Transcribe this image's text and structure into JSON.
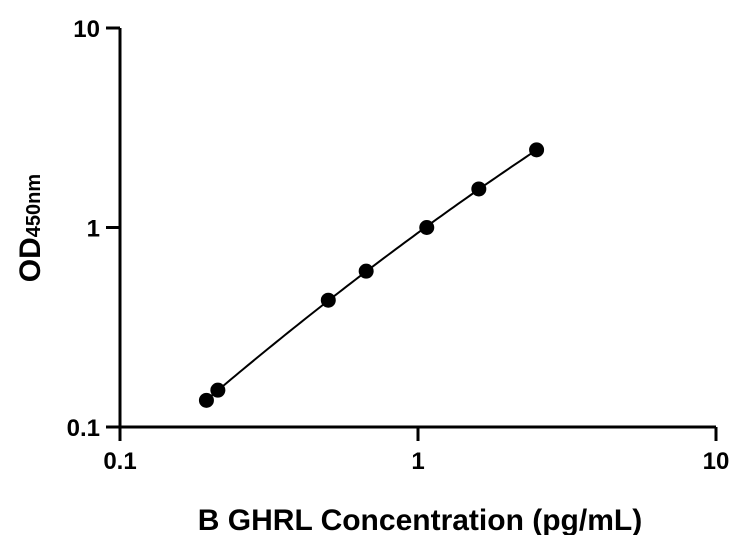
{
  "chart_data": {
    "type": "scatter",
    "title": "",
    "xlabel": "B GHRL Concentration (pg/mL)",
    "ylabel_main": "OD",
    "ylabel_sub": "450nm",
    "x_scale": "log",
    "y_scale": "log",
    "xlim": [
      0.1,
      10
    ],
    "ylim": [
      0.1,
      10
    ],
    "x_ticks": [
      {
        "value": 0.1,
        "label": "0.1"
      },
      {
        "value": 1,
        "label": "1"
      },
      {
        "value": 10,
        "label": "10"
      }
    ],
    "y_ticks": [
      {
        "value": 0.1,
        "label": "0.1"
      },
      {
        "value": 1,
        "label": "1"
      },
      {
        "value": 10,
        "label": "10"
      }
    ],
    "grid": false,
    "legend": "none",
    "series": [
      {
        "marker": "filled-circle",
        "fit_line": true,
        "x": [
          0.195,
          0.213,
          0.5,
          0.67,
          1.07,
          1.6,
          2.5
        ],
        "y": [
          0.136,
          0.153,
          0.432,
          0.604,
          1.0,
          1.56,
          2.45
        ]
      }
    ],
    "colors": {
      "points": "#000000",
      "curve": "#000000",
      "axes": "#000000"
    }
  }
}
